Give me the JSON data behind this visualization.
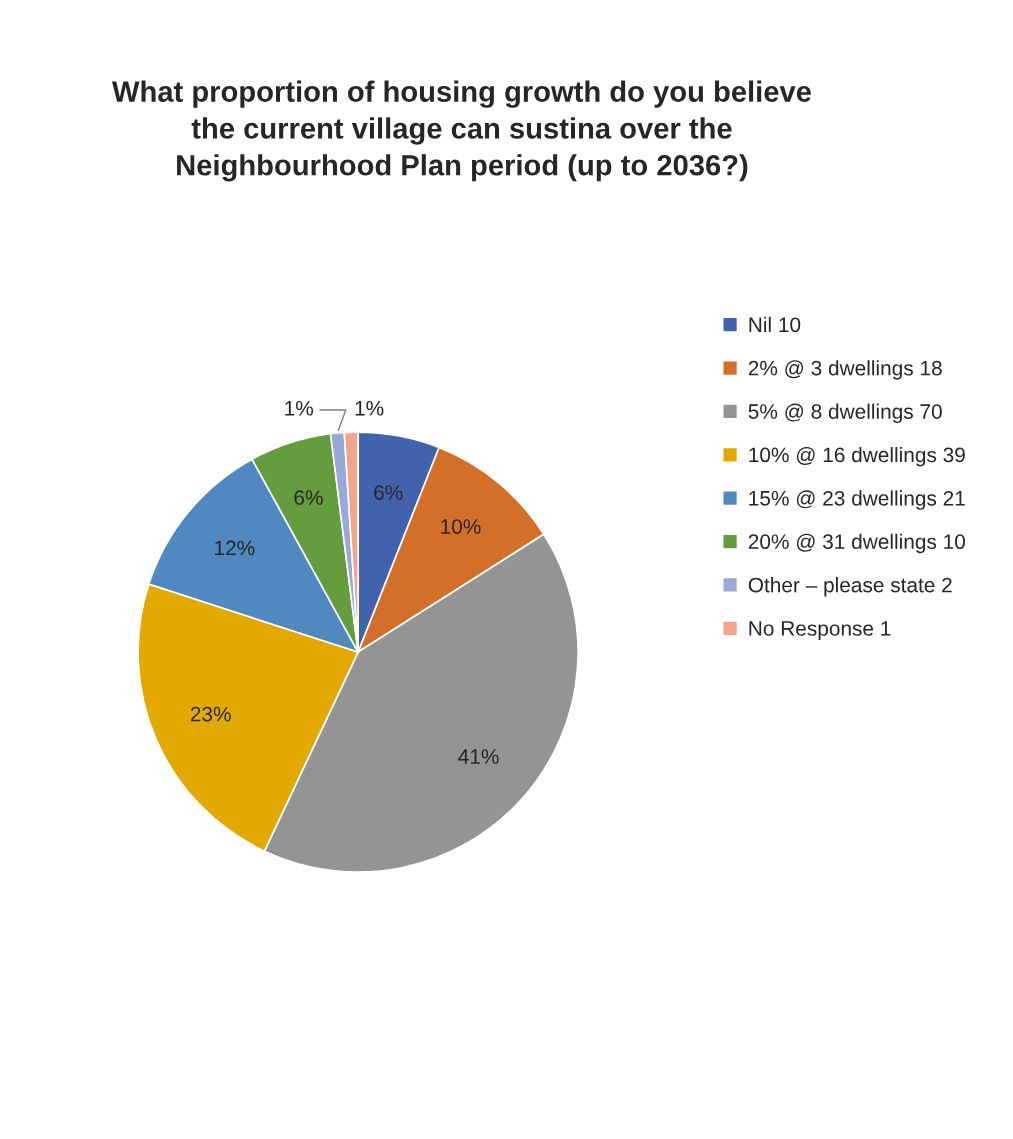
{
  "chart_data": {
    "type": "pie",
    "title": "What proportion of housing growth do you believe\nthe current village can sustina over the\nNeighbourhood Plan period (up to 2036?)",
    "categories": [
      "Nil 10",
      "2% @ 3 dwellings 18",
      "5% @ 8 dwellings 70",
      "10% @ 16 dwellings 39",
      "15% @ 23 dwellings 21",
      "20% @ 31 dwellings 10",
      "Other – please state 2",
      "No Response 1"
    ],
    "values": [
      6,
      10,
      41,
      23,
      12,
      6,
      1,
      1
    ],
    "colors": [
      "#4163ae",
      "#d46f2a",
      "#949494",
      "#e3a900",
      "#4f89c0",
      "#659c3d",
      "#98a9d8",
      "#f2a58a"
    ],
    "value_labels": [
      "6%",
      "10%",
      "41%",
      "23%",
      "12%",
      "6%",
      "1%",
      "1%"
    ],
    "legend": "right"
  }
}
